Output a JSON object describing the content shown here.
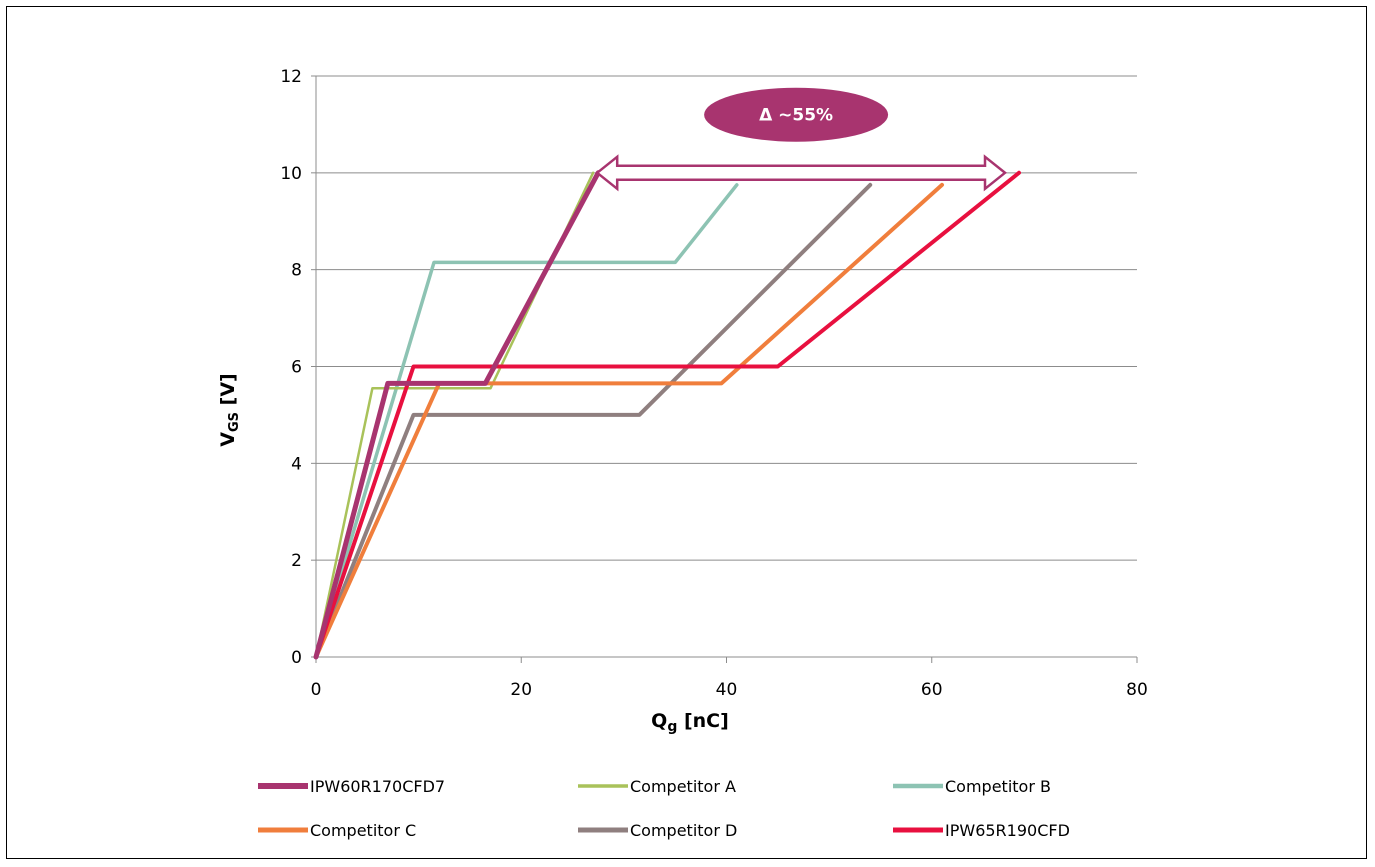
{
  "chart_data": {
    "type": "line",
    "title": "",
    "xlabel": {
      "main": "Q",
      "sub": "g",
      "unit": " [nC]"
    },
    "ylabel": {
      "main": "V",
      "sub": "GS",
      "unit": " [V]"
    },
    "xlim": [
      0,
      80
    ],
    "ylim": [
      0,
      12
    ],
    "xticks": [
      "0",
      "20",
      "40",
      "60",
      "80"
    ],
    "yticks": [
      "0",
      "2",
      "4",
      "6",
      "8",
      "10",
      "12"
    ],
    "grid": "horizontal",
    "legend_position": "bottom",
    "series": [
      {
        "name": "IPW60R170CFD7",
        "color": "#A8346F",
        "width": 5,
        "points": [
          [
            0,
            0
          ],
          [
            7,
            5.65
          ],
          [
            16.5,
            5.65
          ],
          [
            27.5,
            10
          ]
        ]
      },
      {
        "name": "Competitor A",
        "color": "#A9C25A",
        "width": 2.5,
        "points": [
          [
            0,
            0
          ],
          [
            5.5,
            5.55
          ],
          [
            17,
            5.55
          ],
          [
            27,
            10
          ]
        ]
      },
      {
        "name": "Competitor B",
        "color": "#8DC3B3",
        "width": 3.5,
        "points": [
          [
            0,
            0
          ],
          [
            11.5,
            8.15
          ],
          [
            35,
            8.15
          ],
          [
            41,
            9.75
          ]
        ]
      },
      {
        "name": "Competitor C",
        "color": "#F07E3C",
        "width": 4,
        "points": [
          [
            0,
            0
          ],
          [
            12,
            5.65
          ],
          [
            39.5,
            5.65
          ],
          [
            61,
            9.75
          ]
        ]
      },
      {
        "name": "Competitor D",
        "color": "#8F7F7F",
        "width": 4,
        "points": [
          [
            0,
            0
          ],
          [
            9.5,
            5
          ],
          [
            31.5,
            5
          ],
          [
            54,
            9.75
          ]
        ]
      },
      {
        "name": "IPW65R190CFD",
        "color": "#E8103F",
        "width": 4,
        "points": [
          [
            0,
            0
          ],
          [
            9.5,
            6
          ],
          [
            45,
            6
          ],
          [
            68.5,
            10
          ]
        ]
      }
    ],
    "annotation": {
      "text": "Δ ~55%",
      "arrow_from": [
        27.5,
        10
      ],
      "arrow_to": [
        68.5,
        10
      ],
      "fill_color": "#A8346F"
    }
  }
}
